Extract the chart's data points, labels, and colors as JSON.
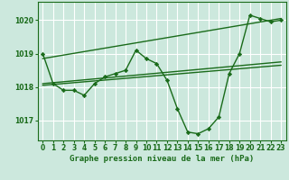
{
  "title": "Graphe pression niveau de la mer (hPa)",
  "bg_color": "#cce8dd",
  "line_color": "#1a6b1a",
  "grid_color": "#ffffff",
  "x_ticks": [
    0,
    1,
    2,
    3,
    4,
    5,
    6,
    7,
    8,
    9,
    10,
    11,
    12,
    13,
    14,
    15,
    16,
    17,
    18,
    19,
    20,
    21,
    22,
    23
  ],
  "y_ticks": [
    1017,
    1018,
    1019,
    1020
  ],
  "ylim": [
    1016.4,
    1020.55
  ],
  "xlim": [
    -0.5,
    23.5
  ],
  "series1": [
    1019.0,
    1018.1,
    1017.9,
    1017.9,
    1017.75,
    1018.1,
    1018.3,
    1018.4,
    1018.5,
    1019.1,
    1018.85,
    1018.7,
    1018.2,
    1017.35,
    1016.65,
    1016.6,
    1016.75,
    1017.1,
    1018.4,
    1019.0,
    1020.15,
    1020.05,
    1019.95,
    1020.0
  ],
  "series2_x": [
    0,
    23
  ],
  "series2_y": [
    1018.85,
    1020.05
  ],
  "series3_x": [
    0,
    23
  ],
  "series3_y": [
    1018.05,
    1018.65
  ],
  "series4_x": [
    0,
    23
  ],
  "series4_y": [
    1018.1,
    1018.75
  ],
  "marker": "D",
  "marker_size": 2.2,
  "line_width": 1.0,
  "tick_fontsize": 5.5,
  "xlabel_fontsize": 6.5
}
